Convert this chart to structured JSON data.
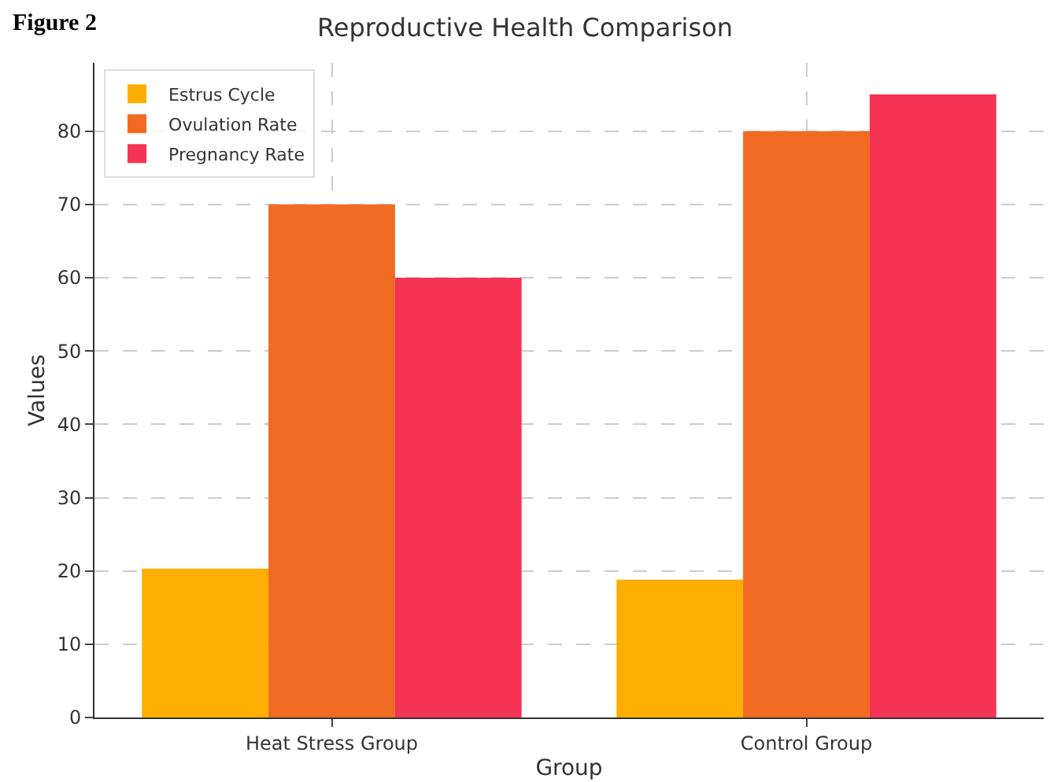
{
  "chart_data": {
    "type": "bar",
    "title": "Reproductive Health Comparison",
    "xlabel": "Group",
    "ylabel": "Values",
    "categories": [
      "Heat Stress Group",
      "Control Group"
    ],
    "series": [
      {
        "name": "Estrus Cycle",
        "color": "#fdae02",
        "values": [
          20.3,
          18.8
        ]
      },
      {
        "name": "Ovulation Rate",
        "color": "#f16a22",
        "values": [
          70,
          80
        ]
      },
      {
        "name": "Pregnancy Rate",
        "color": "#f43355",
        "values": [
          60,
          85
        ]
      }
    ],
    "ylim": [
      0,
      89.3
    ],
    "yticks": [
      0,
      10,
      20,
      30,
      40,
      50,
      60,
      70,
      80
    ],
    "grid": true,
    "legend": "top left",
    "annotations": [
      "Figure 2"
    ]
  }
}
